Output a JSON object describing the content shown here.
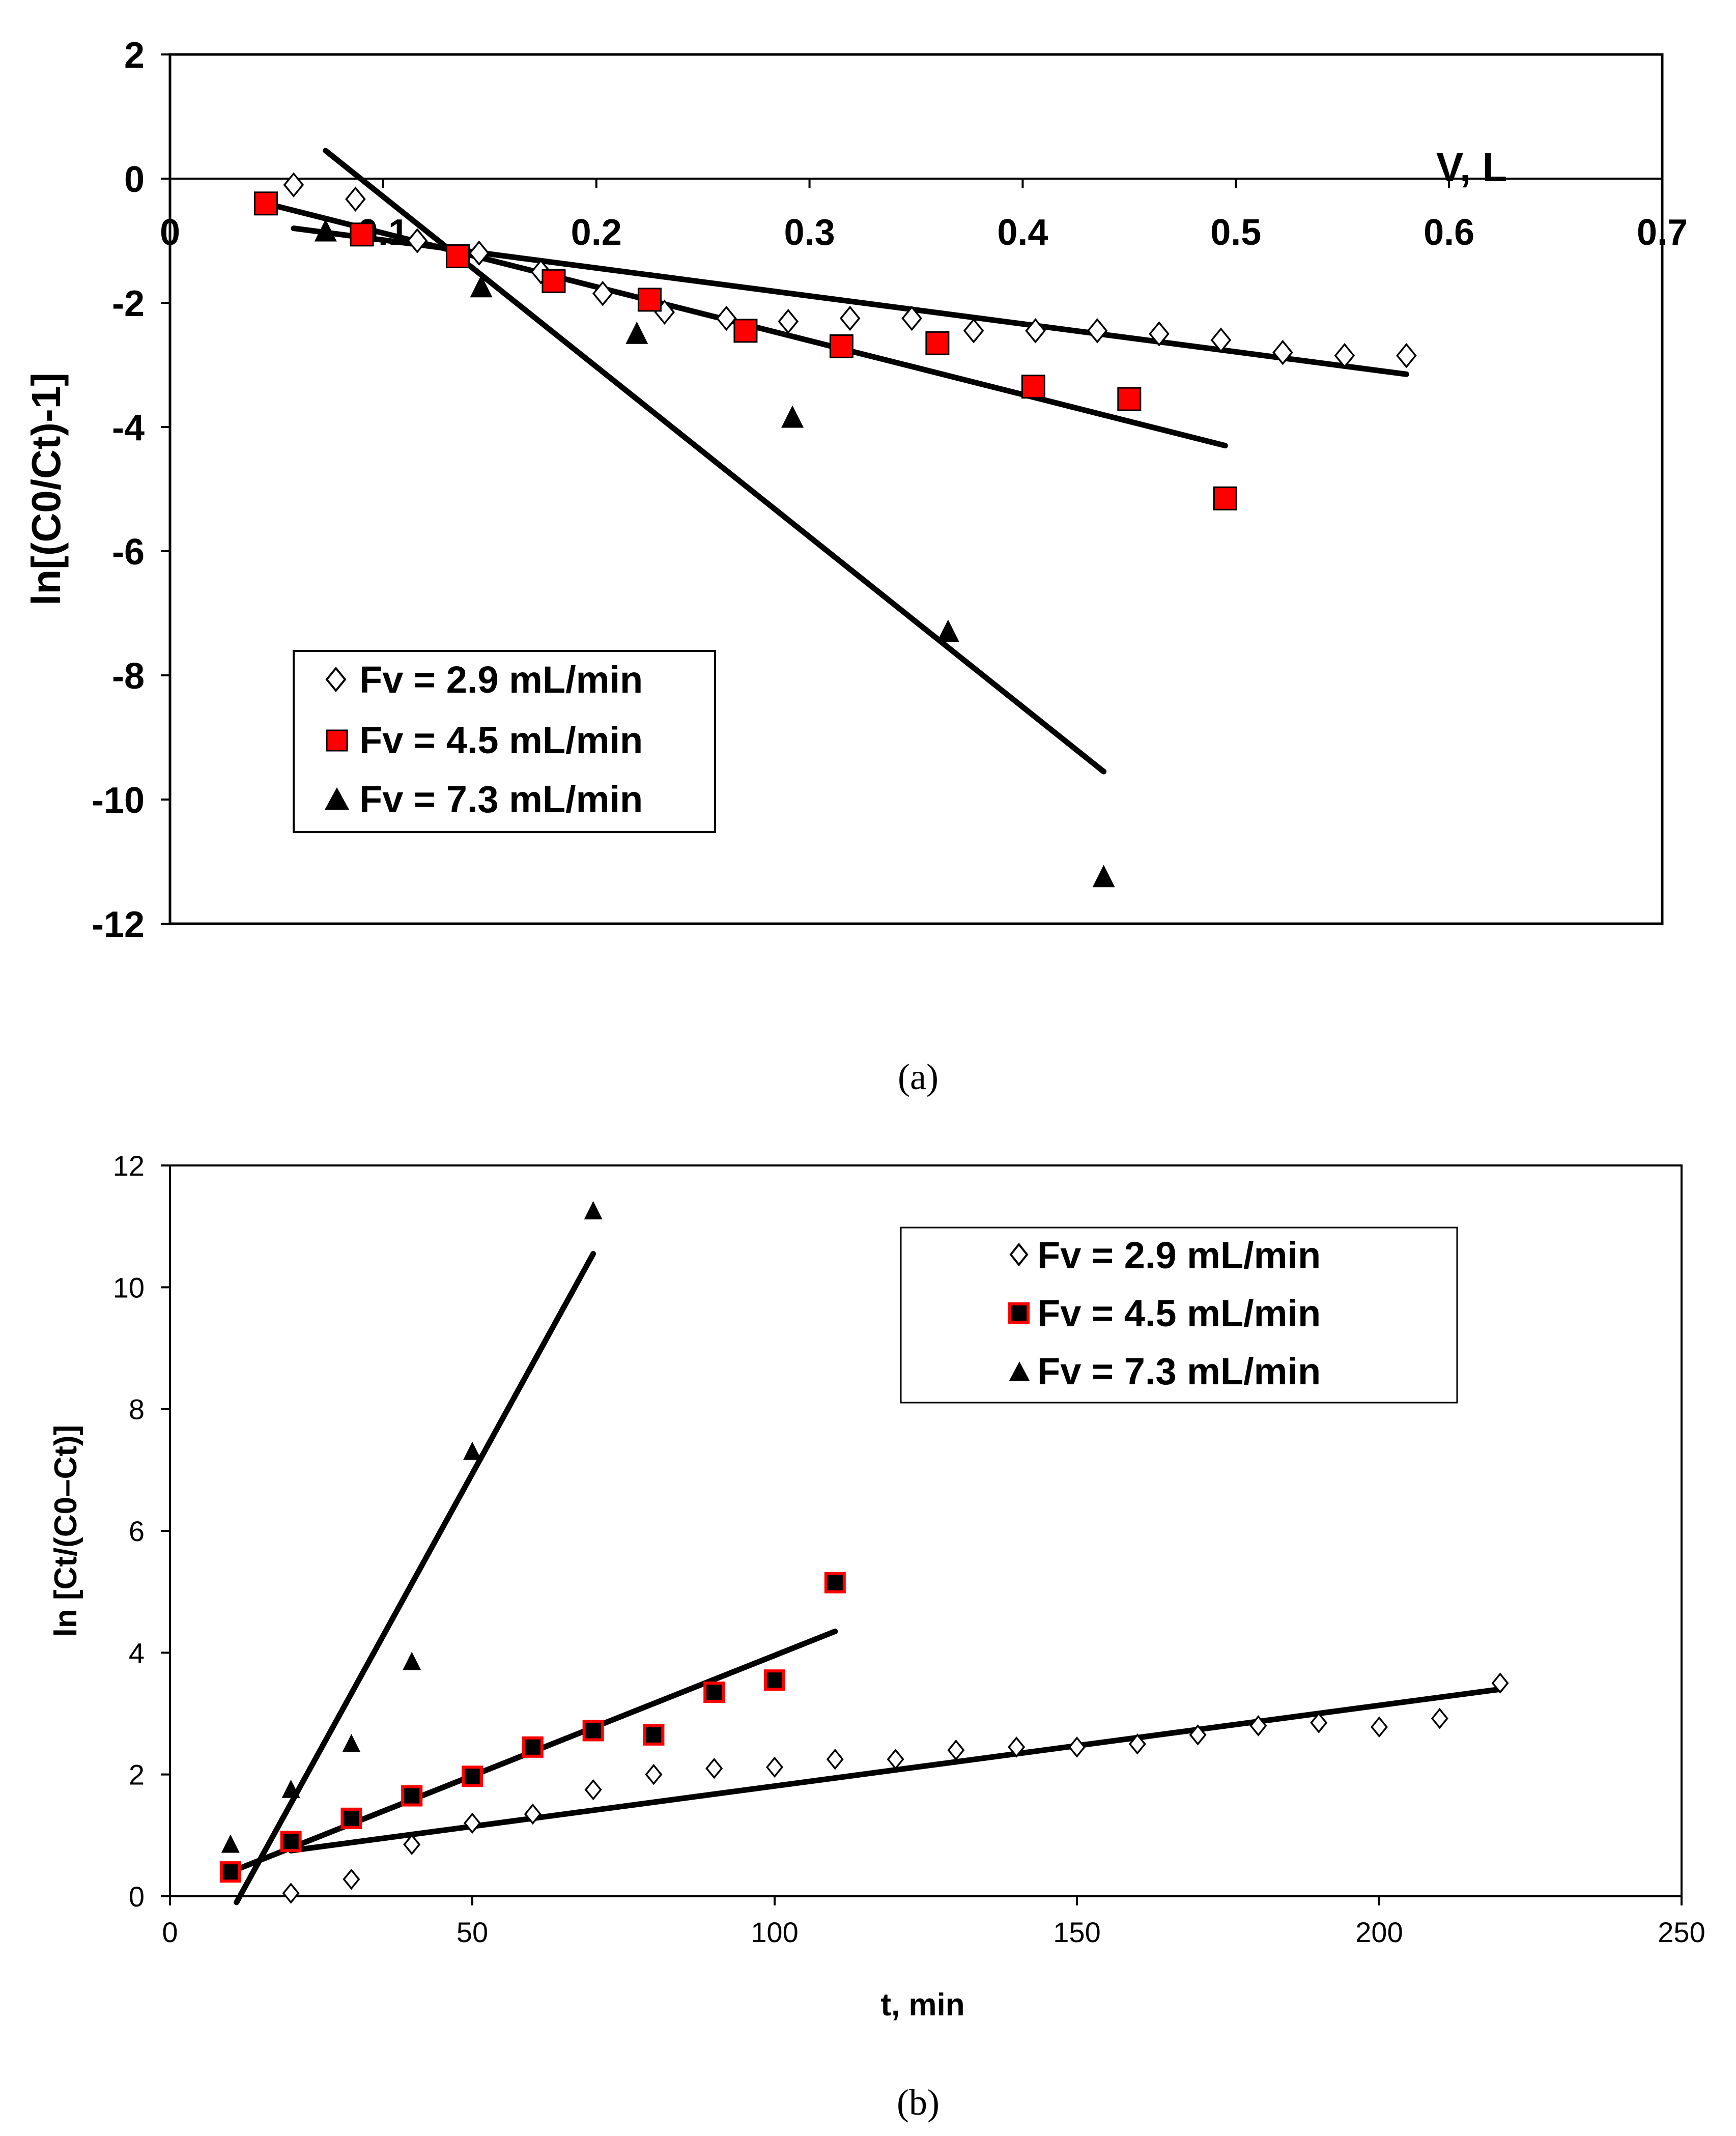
{
  "chart_data": [
    {
      "id": "a",
      "type": "scatter",
      "caption": "(a)",
      "title": "",
      "xlabel": "V, L",
      "ylabel": "ln[(C0/Ct)-1]",
      "xlim": [
        0,
        0.7
      ],
      "ylim": [
        -12,
        2
      ],
      "xticks": [
        0,
        0.1,
        0.2,
        0.3,
        0.4,
        0.5,
        0.6,
        0.7
      ],
      "xtick_labels": [
        "0",
        "0.1",
        "0.2",
        "0.3",
        "0.4",
        "0.5",
        "0.6",
        "0.7"
      ],
      "yticks": [
        2,
        0,
        -2,
        -4,
        -6,
        -8,
        -10,
        -12
      ],
      "ytick_labels": [
        "2",
        "0",
        "-2",
        "-4",
        "-6",
        "-8",
        "-10",
        "-12"
      ],
      "legend_position": "bottom-left",
      "series": [
        {
          "name": "Fv = 2.9 mL/min",
          "marker": "diamond-open",
          "color": "#000000",
          "points": [
            [
              0.058,
              -0.1
            ],
            [
              0.087,
              -0.33
            ],
            [
              0.116,
              -1.0
            ],
            [
              0.145,
              -1.2
            ],
            [
              0.174,
              -1.5
            ],
            [
              0.203,
              -1.85
            ],
            [
              0.232,
              -2.15
            ],
            [
              0.261,
              -2.25
            ],
            [
              0.29,
              -2.3
            ],
            [
              0.319,
              -2.25
            ],
            [
              0.348,
              -2.25
            ],
            [
              0.377,
              -2.45
            ],
            [
              0.406,
              -2.45
            ],
            [
              0.435,
              -2.45
            ],
            [
              0.464,
              -2.5
            ],
            [
              0.493,
              -2.6
            ],
            [
              0.522,
              -2.8
            ],
            [
              0.551,
              -2.85
            ],
            [
              0.58,
              -2.85
            ]
          ],
          "fit": [
            [
              0.058,
              -0.8
            ],
            [
              0.58,
              -3.15
            ]
          ]
        },
        {
          "name": "Fv = 4.5 mL/min",
          "marker": "square-filled",
          "color": "#ff0000",
          "points": [
            [
              0.045,
              -0.4
            ],
            [
              0.09,
              -0.9
            ],
            [
              0.135,
              -1.25
            ],
            [
              0.18,
              -1.65
            ],
            [
              0.225,
              -1.95
            ],
            [
              0.27,
              -2.45
            ],
            [
              0.315,
              -2.7
            ],
            [
              0.36,
              -2.65
            ],
            [
              0.405,
              -3.35
            ],
            [
              0.45,
              -3.55
            ],
            [
              0.495,
              -5.15
            ]
          ],
          "fit": [
            [
              0.045,
              -0.4
            ],
            [
              0.495,
              -4.3
            ]
          ]
        },
        {
          "name": "Fv = 7.3 mL/min",
          "marker": "triangle-filled",
          "color": "#000000",
          "points": [
            [
              0.073,
              -0.85
            ],
            [
              0.146,
              -1.75
            ],
            [
              0.219,
              -2.5
            ],
            [
              0.292,
              -3.85
            ],
            [
              0.365,
              -7.3
            ],
            [
              0.438,
              -11.25
            ]
          ],
          "fit": [
            [
              0.073,
              0.45
            ],
            [
              0.438,
              -9.55
            ]
          ]
        }
      ]
    },
    {
      "id": "b",
      "type": "scatter",
      "caption": "(b)",
      "title": "",
      "xlabel": "t, min",
      "ylabel": "ln [Ct/(C0–Ct)]",
      "xlim": [
        0,
        250
      ],
      "ylim": [
        0,
        12
      ],
      "xticks": [
        0,
        50,
        100,
        150,
        200,
        250
      ],
      "xtick_labels": [
        "0",
        "50",
        "100",
        "150",
        "200",
        "250"
      ],
      "yticks": [
        0,
        2,
        4,
        6,
        8,
        10,
        12
      ],
      "ytick_labels": [
        "0",
        "2",
        "4",
        "6",
        "8",
        "10",
        "12"
      ],
      "legend_position": "top-right",
      "series": [
        {
          "name": "Fv = 2.9 mL/min",
          "marker": "diamond-open",
          "color": "#000000",
          "points": [
            [
              20,
              0.05
            ],
            [
              30,
              0.28
            ],
            [
              40,
              0.85
            ],
            [
              50,
              1.2
            ],
            [
              60,
              1.35
            ],
            [
              70,
              1.75
            ],
            [
              80,
              2.0
            ],
            [
              90,
              2.1
            ],
            [
              100,
              2.12
            ],
            [
              110,
              2.25
            ],
            [
              120,
              2.25
            ],
            [
              130,
              2.4
            ],
            [
              140,
              2.45
            ],
            [
              150,
              2.45
            ],
            [
              160,
              2.5
            ],
            [
              170,
              2.65
            ],
            [
              180,
              2.8
            ],
            [
              190,
              2.85
            ],
            [
              200,
              2.78
            ],
            [
              210,
              2.92
            ],
            [
              220,
              3.5
            ]
          ],
          "fit": [
            [
              20,
              0.75
            ],
            [
              220,
              3.4
            ]
          ]
        },
        {
          "name": "Fv = 4.5 mL/min",
          "marker": "square-filled",
          "color": "#000000",
          "stroke": "#ff0000",
          "points": [
            [
              10,
              0.4
            ],
            [
              20,
              0.9
            ],
            [
              30,
              1.28
            ],
            [
              40,
              1.65
            ],
            [
              50,
              1.97
            ],
            [
              60,
              2.45
            ],
            [
              70,
              2.72
            ],
            [
              80,
              2.65
            ],
            [
              90,
              3.35
            ],
            [
              100,
              3.55
            ],
            [
              110,
              5.15
            ]
          ],
          "fit": [
            [
              10,
              0.4
            ],
            [
              110,
              4.35
            ]
          ]
        },
        {
          "name": "Fv = 7.3 mL/min",
          "marker": "triangle-filled",
          "color": "#000000",
          "points": [
            [
              10,
              0.85
            ],
            [
              20,
              1.75
            ],
            [
              30,
              2.5
            ],
            [
              40,
              3.85
            ],
            [
              50,
              7.3
            ],
            [
              70,
              11.25
            ]
          ],
          "fit": [
            [
              11,
              -0.1
            ],
            [
              70,
              10.55
            ]
          ]
        }
      ]
    }
  ]
}
